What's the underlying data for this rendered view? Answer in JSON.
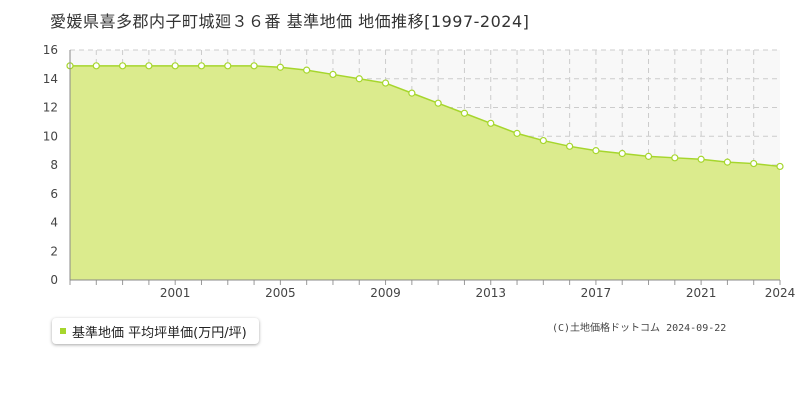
{
  "title": "愛媛県喜多郡内子町城廻３６番 基準地価 地価推移[1997-2024]",
  "legend_label": "基準地価 平均坪単価(万円/坪)",
  "credit": "(C)土地価格ドットコム 2024-09-22",
  "colors": {
    "fill": "#dbeb8d",
    "line": "#a6d62d",
    "grid": "#cccccc",
    "point_stroke": "#a6d62d"
  },
  "chart_data": {
    "type": "area",
    "title": "愛媛県喜多郡内子町城廻３６番 基準地価 地価推移[1997-2024]",
    "xlabel": "",
    "ylabel": "",
    "x": [
      1997,
      1998,
      1999,
      2000,
      2001,
      2002,
      2003,
      2004,
      2005,
      2006,
      2007,
      2008,
      2009,
      2010,
      2011,
      2012,
      2013,
      2014,
      2015,
      2016,
      2017,
      2018,
      2019,
      2020,
      2021,
      2022,
      2023,
      2024
    ],
    "series": [
      {
        "name": "基準地価 平均坪単価(万円/坪)",
        "values": [
          14.9,
          14.9,
          14.9,
          14.9,
          14.9,
          14.9,
          14.9,
          14.9,
          14.8,
          14.6,
          14.3,
          14.0,
          13.7,
          13.0,
          12.3,
          11.6,
          10.9,
          10.2,
          9.7,
          9.3,
          9.0,
          8.8,
          8.6,
          8.5,
          8.4,
          8.2,
          8.1,
          7.9
        ]
      }
    ],
    "xticks": [
      "2001",
      "2005",
      "2009",
      "2013",
      "2017",
      "2021",
      "2024"
    ],
    "yticks": [
      "0",
      "2",
      "4",
      "6",
      "8",
      "10",
      "12",
      "14",
      "16"
    ],
    "xlim": [
      1997,
      2024
    ],
    "ylim": [
      0,
      16
    ],
    "grid": true,
    "legend": "bottom-left"
  }
}
